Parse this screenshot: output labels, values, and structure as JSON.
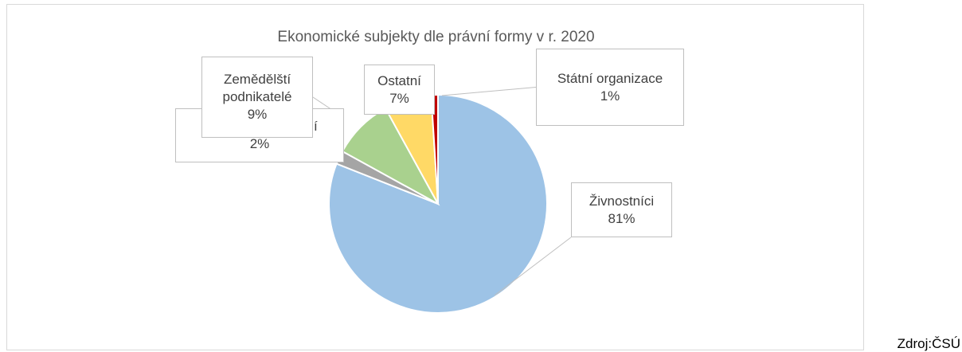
{
  "chart_data": {
    "type": "pie",
    "title": "Ekonomické subjekty dle právní formy v r. 2020",
    "categories": [
      "Živnostníci",
      "Svobodná povolání",
      "Zemědělští podnikatelé",
      "Ostatní",
      "Státní organizace"
    ],
    "values": [
      81,
      2,
      9,
      7,
      1
    ],
    "value_labels": [
      "81%",
      "2%",
      "9%",
      "7%",
      "1%"
    ],
    "colors": [
      "#9dc3e6",
      "#a5a5a5",
      "#a9d18e",
      "#ffd966",
      "#c00000"
    ]
  },
  "source": "Zdroj:ČSÚ"
}
